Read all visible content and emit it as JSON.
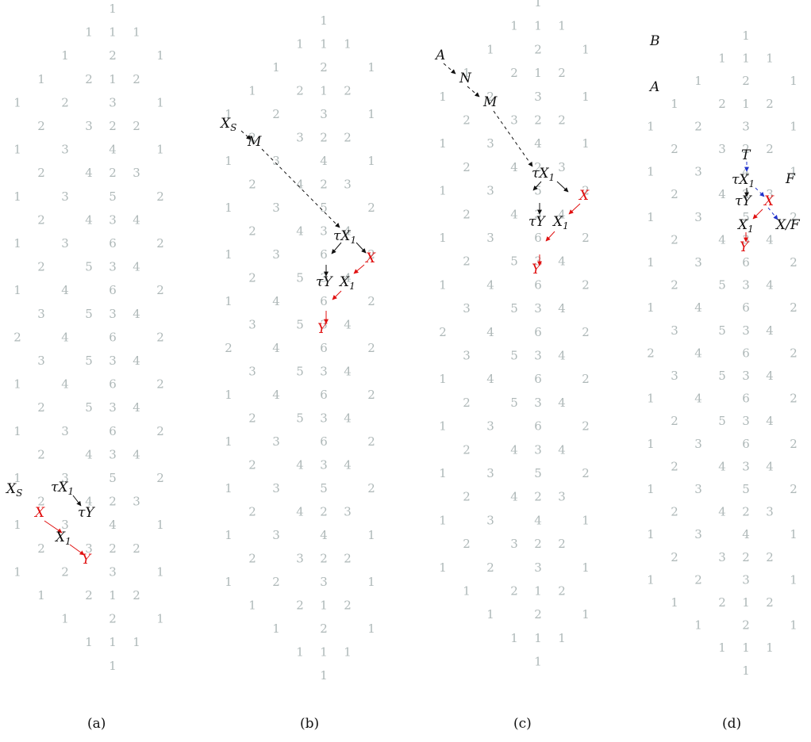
{
  "colors": {
    "grid_number": "#aeb8b8",
    "label": "#111111",
    "highlight": "#e01010",
    "blue_arrow": "#2233cc"
  },
  "number_rows": [
    [
      "1"
    ],
    [
      "1",
      "1",
      "1"
    ],
    [
      "1",
      "2",
      "1"
    ],
    [
      "1",
      "2",
      "1",
      "2"
    ],
    [
      "1",
      "2",
      "3",
      "1"
    ],
    [
      "2",
      "3",
      "2",
      "2"
    ],
    [
      "1",
      "3",
      "4",
      "1"
    ],
    [
      "2",
      "4",
      "2",
      "3"
    ],
    [
      "1",
      "3",
      "5",
      "2"
    ],
    [
      "2",
      "4",
      "3",
      "4"
    ],
    [
      "1",
      "3",
      "6",
      "2"
    ],
    [
      "2",
      "5",
      "3",
      "4"
    ],
    [
      "1",
      "4",
      "6",
      "2"
    ],
    [
      "3",
      "5",
      "3",
      "4"
    ],
    [
      "2",
      "4",
      "6",
      "2"
    ],
    [
      "3",
      "5",
      "3",
      "4"
    ],
    [
      "1",
      "4",
      "6",
      "2"
    ],
    [
      "2",
      "5",
      "3",
      "4"
    ],
    [
      "1",
      "3",
      "6",
      "2"
    ],
    [
      "2",
      "4",
      "3",
      "4"
    ],
    [
      "1",
      "3",
      "5",
      "2"
    ],
    [
      "2",
      "4",
      "2",
      "3"
    ],
    [
      "1",
      "3",
      "4",
      "1"
    ],
    [
      "2",
      "3",
      "2",
      "2"
    ],
    [
      "1",
      "2",
      "3",
      "1"
    ],
    [
      "1",
      "2",
      "1",
      "2"
    ],
    [
      "1",
      "2",
      "1"
    ],
    [
      "1",
      "1",
      "1"
    ],
    [
      "1"
    ]
  ],
  "panels": [
    {
      "caption": "(a)",
      "labels": [
        {
          "id": "xs",
          "base": "X",
          "sub": "S",
          "color": "label"
        },
        {
          "id": "tx1",
          "base": "τX",
          "sub": "1",
          "color": "label"
        },
        {
          "id": "ty",
          "base": "τY",
          "sub": "",
          "color": "label"
        },
        {
          "id": "x",
          "base": "X",
          "sub": "",
          "color": "highlight"
        },
        {
          "id": "x1",
          "base": "X",
          "sub": "1",
          "color": "label"
        },
        {
          "id": "y",
          "base": "Y",
          "sub": "",
          "color": "highlight"
        }
      ]
    },
    {
      "caption": "(b)",
      "labels": [
        {
          "id": "xs",
          "base": "X",
          "sub": "S",
          "color": "label"
        },
        {
          "id": "m",
          "base": "M",
          "sub": "",
          "color": "label"
        },
        {
          "id": "tx1",
          "base": "τX",
          "sub": "1",
          "color": "label"
        },
        {
          "id": "x",
          "base": "X",
          "sub": "",
          "color": "highlight"
        },
        {
          "id": "ty",
          "base": "τY",
          "sub": "",
          "color": "label"
        },
        {
          "id": "x1",
          "base": "X",
          "sub": "1",
          "color": "label"
        },
        {
          "id": "y",
          "base": "Y",
          "sub": "",
          "color": "highlight"
        }
      ]
    },
    {
      "caption": "(c)",
      "labels": [
        {
          "id": "a",
          "base": "A",
          "sub": "",
          "color": "label"
        },
        {
          "id": "n",
          "base": "N",
          "sub": "",
          "color": "label"
        },
        {
          "id": "m",
          "base": "M",
          "sub": "",
          "color": "label"
        },
        {
          "id": "tx1",
          "base": "τX",
          "sub": "1",
          "color": "label"
        },
        {
          "id": "x",
          "base": "X",
          "sub": "",
          "color": "highlight"
        },
        {
          "id": "ty",
          "base": "τY",
          "sub": "",
          "color": "label"
        },
        {
          "id": "x1",
          "base": "X",
          "sub": "1",
          "color": "label"
        },
        {
          "id": "y",
          "base": "Y",
          "sub": "",
          "color": "highlight"
        }
      ]
    },
    {
      "caption": "(d)",
      "labels": [
        {
          "id": "b",
          "base": "B",
          "sub": "",
          "color": "label"
        },
        {
          "id": "a",
          "base": "A",
          "sub": "",
          "color": "label"
        },
        {
          "id": "t",
          "base": "T",
          "sub": "",
          "color": "label"
        },
        {
          "id": "f",
          "base": "F",
          "sub": "",
          "color": "label"
        },
        {
          "id": "tx1",
          "base": "τX",
          "sub": "1",
          "color": "label"
        },
        {
          "id": "ty",
          "base": "τY",
          "sub": "",
          "color": "label"
        },
        {
          "id": "x",
          "base": "X",
          "sub": "",
          "color": "highlight"
        },
        {
          "id": "x1",
          "base": "X",
          "sub": "1",
          "color": "label"
        },
        {
          "id": "xf",
          "base": "X/F",
          "sub": "",
          "color": "label"
        },
        {
          "id": "y",
          "base": "Y",
          "sub": "",
          "color": "highlight"
        }
      ]
    }
  ]
}
